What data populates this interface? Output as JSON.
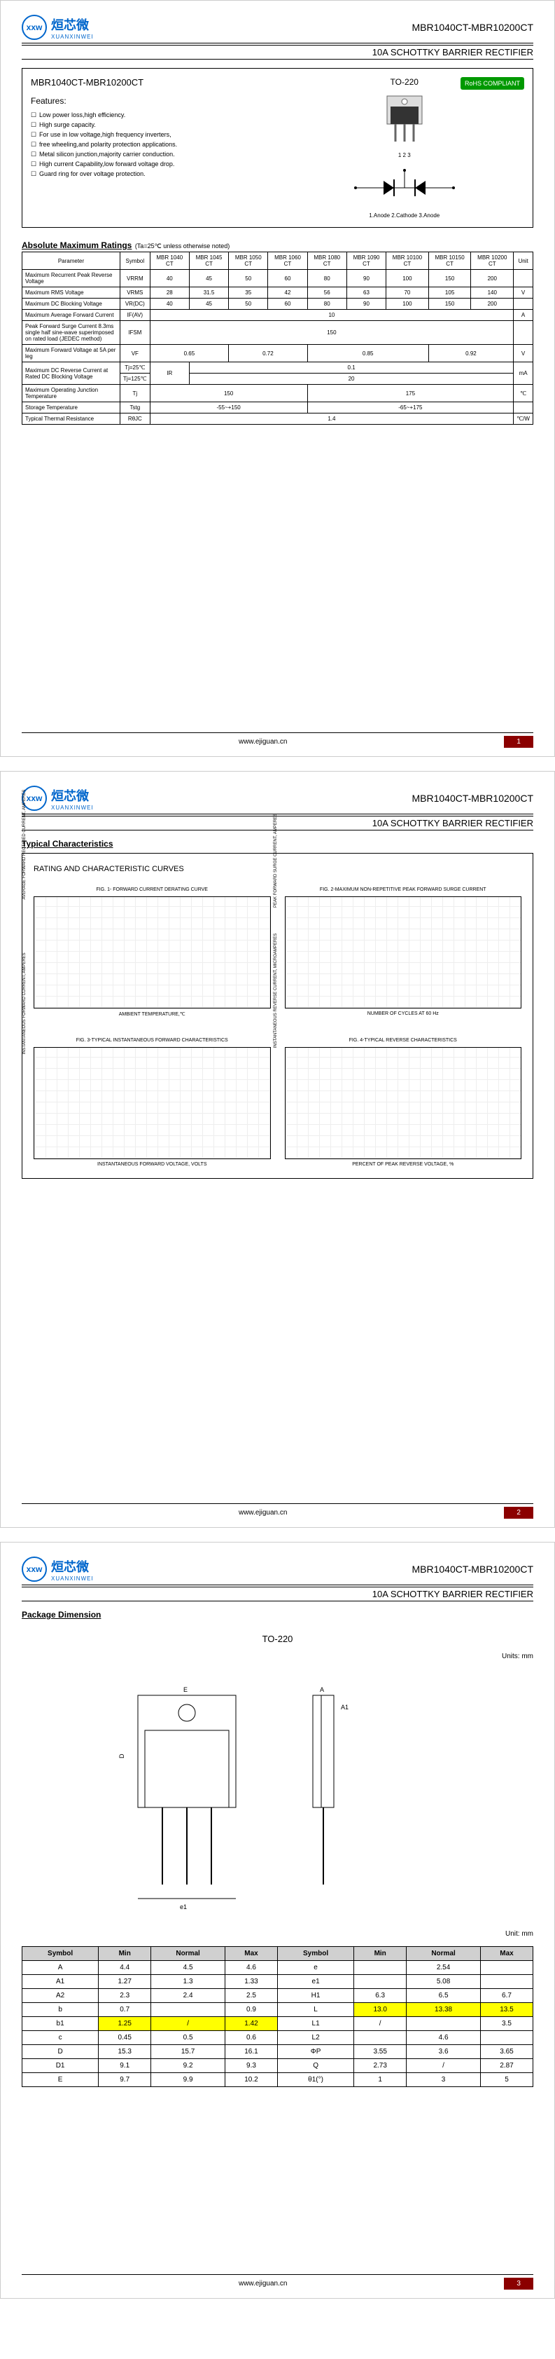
{
  "logo": {
    "icon": "xxw",
    "cn": "烜芯微",
    "en": "XUANXINWEI"
  },
  "header": {
    "part": "MBR1040CT-MBR10200CT",
    "subtitle": "10A SCHOTTKY BARRIER RECTIFIER"
  },
  "p1": {
    "box_title": "MBR1040CT-MBR10200CT",
    "features_h": "Features:",
    "features": [
      "Low power loss,high efficiency.",
      "High surge capacity.",
      "For use in low voltage,high frequency inverters,",
      "free wheeling,and polarity protection applications.",
      "Metal silicon junction,majority carrier conduction.",
      "High current Capability,low forward voltage drop.",
      "Guard ring for over voltage protection."
    ],
    "pkg": "TO-220",
    "rohs": "RoHS COMPLIANT",
    "pin_label": "1 2 3",
    "diode_label": "1.Anode  2.Cathode  3.Anode",
    "ratings_title": "Absolute Maximum Ratings",
    "ratings_note": "(Ta=25℃ unless otherwise noted)",
    "cols": [
      "Parameter",
      "Symbol",
      "MBR 1040 CT",
      "MBR 1045 CT",
      "MBR 1050 CT",
      "MBR 1060 CT",
      "MBR 1080 CT",
      "MBR 1090 CT",
      "MBR 10100 CT",
      "MBR 10150 CT",
      "MBR 10200 CT",
      "Unit"
    ],
    "rows": [
      {
        "p": "Maximum Recurrent Peak Reverse Voltage",
        "s": "VRRM",
        "v": [
          "40",
          "45",
          "50",
          "60",
          "80",
          "90",
          "100",
          "150",
          "200"
        ],
        "u": ""
      },
      {
        "p": "Maximum RMS Voltage",
        "s": "VRMS",
        "v": [
          "28",
          "31.5",
          "35",
          "42",
          "56",
          "63",
          "70",
          "105",
          "140"
        ],
        "u": "V"
      },
      {
        "p": "Maximum DC Blocking Voltage",
        "s": "VR(DC)",
        "v": [
          "40",
          "45",
          "50",
          "60",
          "80",
          "90",
          "100",
          "150",
          "200"
        ],
        "u": ""
      },
      {
        "p": "Maximum Average Forward Current",
        "s": "IF(AV)",
        "span": "10",
        "u": "A"
      },
      {
        "p": "Peak Forward Surge Current 8.3ms single half sine-wave superimposed on rated load (JEDEC method)",
        "s": "IFSM",
        "span": "150",
        "u": ""
      },
      {
        "p": "Maximum Forward Voltage at 5A per leg",
        "s": "VF",
        "v2": [
          [
            "0.65",
            2
          ],
          [
            "0.72",
            2
          ],
          [
            "0.85",
            3
          ],
          [
            "0.92",
            2
          ]
        ],
        "u": "V"
      }
    ],
    "dc_rev": {
      "p": "Maximum DC Reverse Current at Rated DC Blocking Voltage",
      "s": "IR",
      "r1": "Tj=25℃",
      "v1": "0.1",
      "r2": "Tj=125℃",
      "v2": "20",
      "u": "mA"
    },
    "tj": {
      "p": "Maximum Operating Junction Temperature",
      "s": "Tj",
      "v1": "150",
      "v1s": 4,
      "v2": "175",
      "v2s": 5,
      "u": "℃"
    },
    "tstg": {
      "p": "Storage Temperature",
      "s": "Tstg",
      "v1": "-55~+150",
      "v1s": 4,
      "v2": "-65~+175",
      "v2s": 5,
      "u": ""
    },
    "rth": {
      "p": "Typical Thermal Resistance",
      "s": "RθJC",
      "v": "1.4",
      "u": "℃/W"
    }
  },
  "p2": {
    "title": "Typical Characteristics",
    "box_title": "RATING AND CHARACTERISTIC CURVES",
    "charts": [
      {
        "cap": "FIG. 1- FORWARD CURRENT DERATING CURVE",
        "yl": "AVERAGE FORWARD RECTIFIED CURRENT, AMPERES",
        "xl": "AMBIENT TEMPERATURE,℃"
      },
      {
        "cap": "FIG. 2-MAXIMUM NON-REPETITIVE PEAK FORWARD SURGE CURRENT",
        "yl": "PEAK FORWARD SURGE CURRENT, AMPERES",
        "xl": "NUMBER OF CYCLES AT 60 Hz"
      },
      {
        "cap": "FIG. 3-TYPICAL INSTANTANEOUS FORWARD CHARACTERISTICS",
        "yl": "INSTANTANEOUS FORWARD CURRENT, AMPERES",
        "xl": "INSTANTANEOUS FORWARD VOLTAGE, VOLTS"
      },
      {
        "cap": "FIG. 4-TYPICAL REVERSE CHARACTERISTICS",
        "yl": "INSTANTANEOUS REVERSE CURRENT, MICROAMPERES",
        "xl": "PERCENT OF PEAK REVERSE VOLTAGE, %"
      }
    ]
  },
  "p3": {
    "title": "Package Dimension",
    "pkg": "TO-220",
    "units": "Units: mm",
    "unit2": "Unit: mm",
    "cols": [
      "Symbol",
      "Min",
      "Normal",
      "Max",
      "Symbol",
      "Min",
      "Normal",
      "Max"
    ],
    "rows": [
      [
        "A",
        "4.4",
        "4.5",
        "4.6",
        "e",
        "",
        "2.54",
        ""
      ],
      [
        "A1",
        "1.27",
        "1.3",
        "1.33",
        "e1",
        "",
        "5.08",
        ""
      ],
      [
        "A2",
        "2.3",
        "2.4",
        "2.5",
        "H1",
        "6.3",
        "6.5",
        "6.7"
      ],
      [
        "b",
        "0.7",
        "",
        "0.9",
        "L",
        {
          "hl": "13.0"
        },
        {
          "hl": "13.38"
        },
        {
          "hl": "13.5"
        }
      ],
      [
        "b1",
        {
          "hl": "1.25"
        },
        {
          "hl": "/"
        },
        {
          "hl": "1.42"
        },
        "L1",
        "/",
        "",
        "3.5"
      ],
      [
        "c",
        "0.45",
        "0.5",
        "0.6",
        "L2",
        "",
        "4.6",
        ""
      ],
      [
        "D",
        "15.3",
        "15.7",
        "16.1",
        "ΦP",
        "3.55",
        "3.6",
        "3.65"
      ],
      [
        "D1",
        "9.1",
        "9.2",
        "9.3",
        "Q",
        "2.73",
        "/",
        "2.87"
      ],
      [
        "E",
        "9.7",
        "9.9",
        "10.2",
        "θ1(°)",
        "1",
        "3",
        "5"
      ]
    ]
  },
  "footer": {
    "url": "www.ejiguan.cn"
  }
}
